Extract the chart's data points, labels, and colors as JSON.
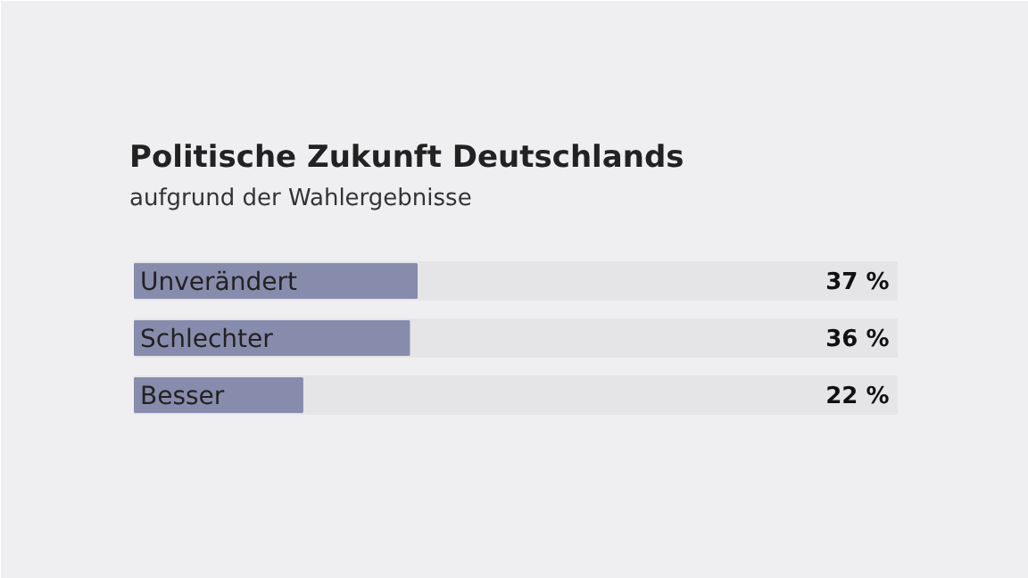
{
  "chart_data": {
    "type": "bar",
    "orientation": "horizontal",
    "title": "Politische Zukunft Deutschlands",
    "subtitle": "aufgrund der Wahlergebnisse",
    "categories": [
      "Unverändert",
      "Schlechter",
      "Besser"
    ],
    "values": [
      37,
      36,
      22
    ],
    "color": "#878cad",
    "value_labels": [
      "37 %",
      "36 %",
      "22 %"
    ],
    "xlim": [
      0,
      100
    ],
    "tick_labels": false
  }
}
